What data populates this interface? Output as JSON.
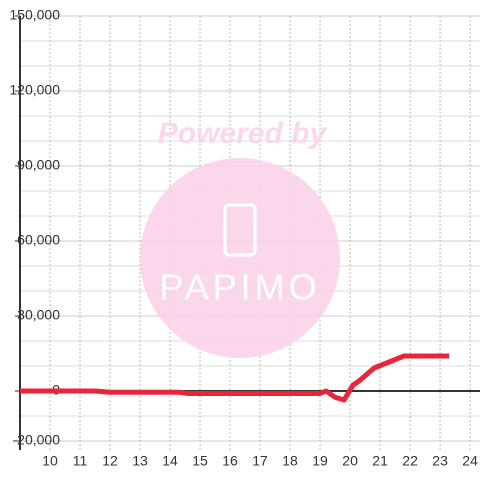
{
  "chart_data": {
    "type": "line",
    "x": [
      9,
      11.5,
      12,
      14.3,
      14.6,
      19,
      19.2,
      19.5,
      19.8,
      20.1,
      20.3,
      20.8,
      21.3,
      21.8,
      23.3
    ],
    "series": [
      {
        "color": "#e8253a",
        "values": [
          0,
          0,
          -500,
          -500,
          -1000,
          -1000,
          0,
          -2500,
          -3600,
          2400,
          4000,
          9200,
          11600,
          14000,
          14000
        ]
      }
    ],
    "xlim": [
      9,
      24.33
    ],
    "xticks": [
      10,
      11,
      12,
      13,
      14,
      15,
      16,
      17,
      18,
      19,
      20,
      21,
      22,
      23,
      24
    ],
    "ylim": [
      -20000,
      150000
    ],
    "yticks": [
      {
        "value": -20000,
        "label": "-20,000"
      },
      {
        "value": 0,
        "label": "0"
      },
      {
        "value": 30000,
        "label": "30,000"
      },
      {
        "value": 60000,
        "label": "60,000"
      },
      {
        "value": 90000,
        "label": "90,000"
      },
      {
        "value": 120000,
        "label": "120,000"
      },
      {
        "value": 150000,
        "label": "150,000"
      }
    ],
    "yminor": [
      -10000,
      10000,
      20000,
      40000,
      50000,
      70000,
      80000,
      100000,
      110000,
      130000,
      140000
    ],
    "grid": true,
    "annotations": [
      "Powered by",
      "PAPIMO"
    ]
  }
}
